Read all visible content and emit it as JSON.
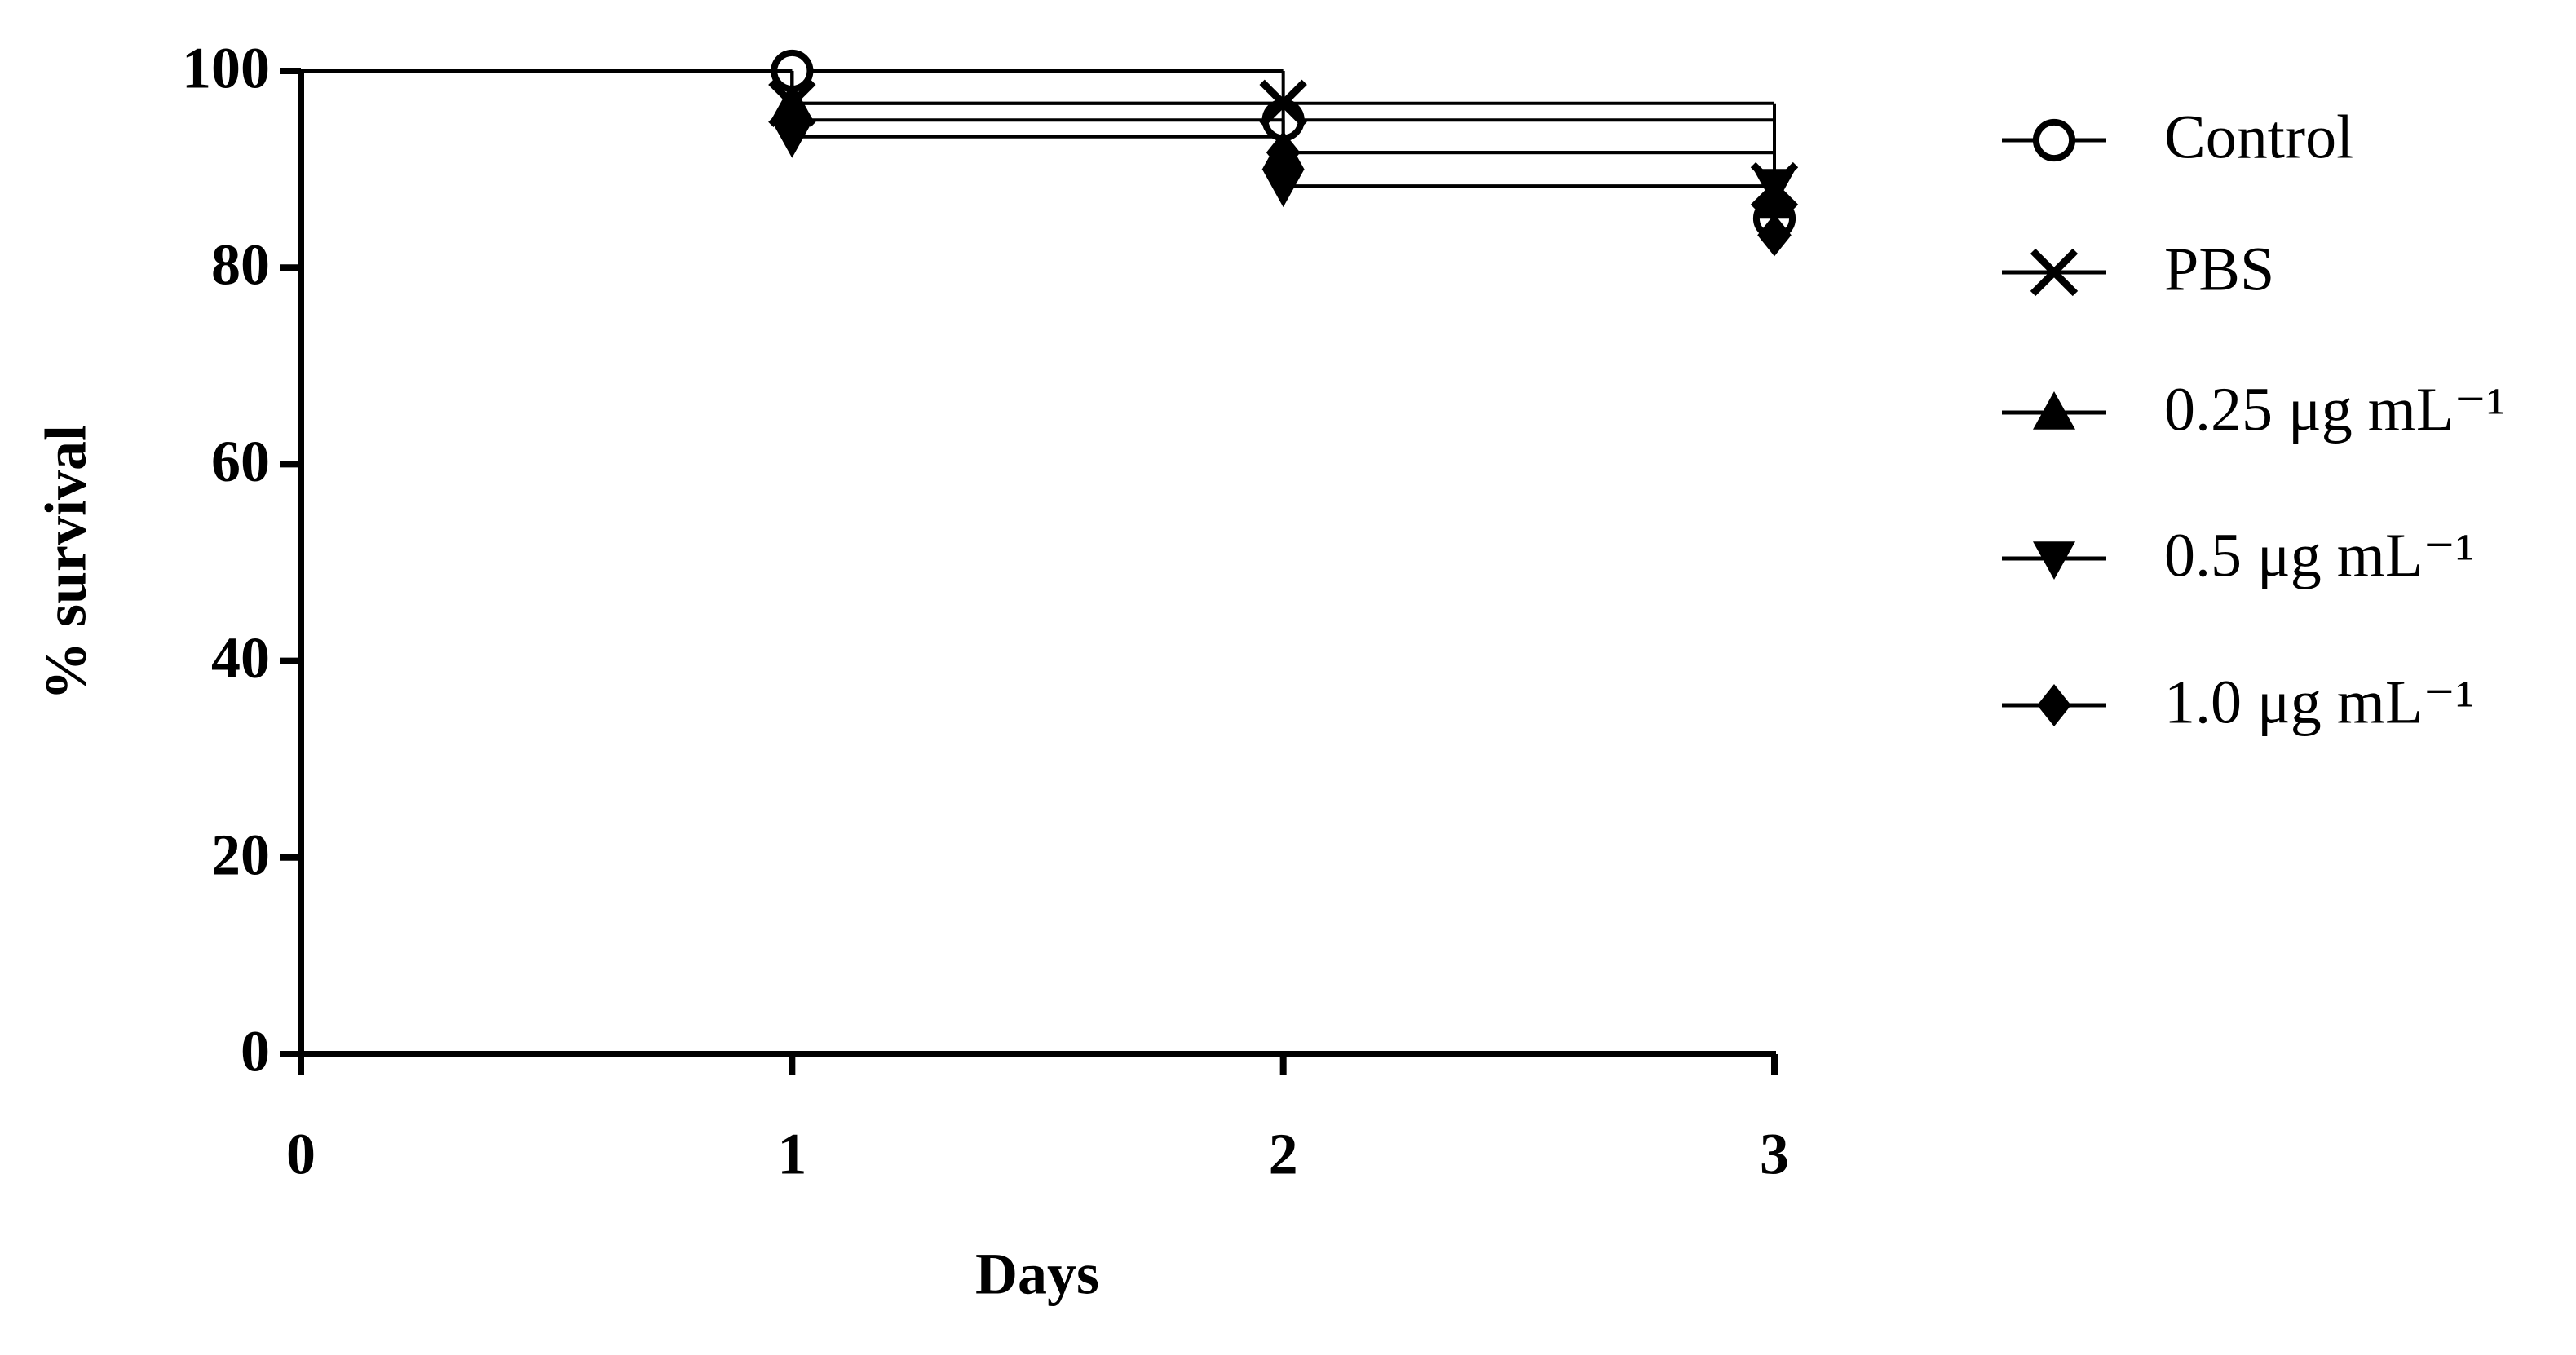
{
  "chart_data": {
    "type": "step",
    "xlabel": "Days",
    "ylabel": "% survival",
    "x": [
      0,
      1,
      2,
      3
    ],
    "xlim": [
      0,
      3
    ],
    "xticks": [
      0,
      1,
      2,
      3
    ],
    "ylim": [
      0,
      100
    ],
    "yticks": [
      0,
      20,
      40,
      60,
      80,
      100
    ],
    "grid": false,
    "legend": "right",
    "series": [
      {
        "name": "Control",
        "color": "#000000",
        "marker": "circle",
        "values": [
          100,
          100,
          95,
          85
        ]
      },
      {
        "name": "PBS",
        "color": "#000000",
        "marker": "x",
        "values": [
          100,
          96.7,
          96.7,
          88.3
        ]
      },
      {
        "name": "0.25 μg mL⁻¹",
        "color": "#000000",
        "marker": "triangle-up",
        "values": [
          100,
          96.7,
          91.7,
          86.7
        ]
      },
      {
        "name": "0.5 μg mL⁻¹",
        "color": "#000000",
        "marker": "triangle-down",
        "values": [
          100,
          93.3,
          88.3,
          88.3
        ]
      },
      {
        "name": "1.0 μg mL⁻¹",
        "color": "#000000",
        "marker": "diamond",
        "values": [
          100,
          95,
          91.7,
          83.3
        ]
      }
    ]
  }
}
